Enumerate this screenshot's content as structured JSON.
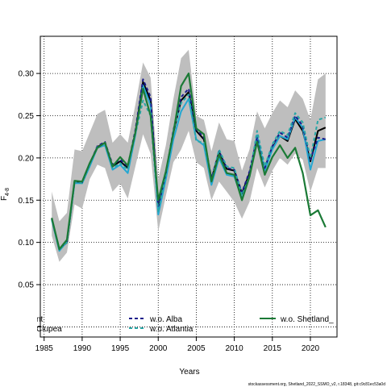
{
  "chart_data": {
    "type": "line",
    "xlabel": "Years",
    "ylabel_main": "F",
    "ylabel_sub": "4-8",
    "xlim": [
      1984.5,
      2023.5
    ],
    "ylim": [
      -0.012,
      0.344
    ],
    "xticks": [
      1985,
      1990,
      1995,
      2000,
      2005,
      2010,
      2015,
      2020
    ],
    "yticks": [
      0.0,
      0.05,
      0.1,
      0.15,
      0.2,
      0.25,
      0.3
    ],
    "ytick_labels": [
      "0.00",
      "0.05",
      "0.10",
      "0.15",
      "0.20",
      "0.25",
      "0.30"
    ],
    "grid": true,
    "x": [
      1986,
      1987,
      1988,
      1989,
      1990,
      1991,
      1992,
      1993,
      1994,
      1995,
      1996,
      1997,
      1998,
      1999,
      2000,
      2001,
      2002,
      2003,
      2004,
      2005,
      2006,
      2007,
      2008,
      2009,
      2010,
      2011,
      2012,
      2013,
      2014,
      2015,
      2016,
      2017,
      2018,
      2019,
      2020,
      2021,
      2022
    ],
    "band": {
      "upper": [
        0.16,
        0.125,
        0.135,
        0.21,
        0.208,
        0.23,
        0.252,
        0.257,
        0.218,
        0.228,
        0.218,
        0.263,
        0.313,
        0.295,
        0.175,
        0.215,
        0.27,
        0.318,
        0.328,
        0.25,
        0.245,
        0.208,
        0.242,
        0.222,
        0.22,
        0.185,
        0.21,
        0.255,
        0.235,
        0.253,
        0.268,
        0.26,
        0.28,
        0.27,
        0.245,
        0.293,
        0.3
      ],
      "lower": [
        0.108,
        0.077,
        0.088,
        0.145,
        0.14,
        0.175,
        0.192,
        0.188,
        0.16,
        0.17,
        0.152,
        0.19,
        0.228,
        0.205,
        0.113,
        0.155,
        0.195,
        0.21,
        0.232,
        0.195,
        0.188,
        0.15,
        0.172,
        0.16,
        0.148,
        0.128,
        0.148,
        0.188,
        0.165,
        0.185,
        0.2,
        0.192,
        0.205,
        0.198,
        0.16,
        0.188,
        0.188
      ]
    },
    "series": [
      {
        "name": "",
        "color": "#000000",
        "dash": "",
        "values": [
          0.128,
          0.092,
          0.1,
          0.172,
          0.171,
          0.193,
          0.213,
          0.218,
          0.19,
          0.196,
          0.188,
          0.23,
          0.29,
          0.268,
          0.14,
          0.18,
          0.23,
          0.268,
          0.278,
          0.232,
          0.222,
          0.175,
          0.207,
          0.187,
          0.185,
          0.158,
          0.182,
          0.22,
          0.185,
          0.212,
          0.226,
          0.22,
          0.246,
          0.232,
          0.196,
          0.232,
          0.236
        ]
      },
      {
        "name": "",
        "color": "#24a7d2",
        "dash": "",
        "values": [
          0.127,
          0.09,
          0.101,
          0.17,
          0.17,
          0.19,
          0.212,
          0.215,
          0.186,
          0.192,
          0.182,
          0.227,
          0.286,
          0.262,
          0.133,
          0.175,
          0.222,
          0.255,
          0.27,
          0.222,
          0.215,
          0.168,
          0.2,
          0.18,
          0.178,
          0.152,
          0.178,
          0.227,
          0.185,
          0.21,
          0.226,
          0.222,
          0.248,
          0.236,
          0.186,
          0.22,
          0.222
        ]
      },
      {
        "name": "w.o. Alba",
        "color": "#1b1b8a",
        "dash": "4,3",
        "values": [
          0.128,
          0.092,
          0.101,
          0.172,
          0.171,
          0.193,
          0.214,
          0.219,
          0.192,
          0.198,
          0.19,
          0.233,
          0.293,
          0.272,
          0.143,
          0.182,
          0.233,
          0.272,
          0.282,
          0.234,
          0.224,
          0.176,
          0.208,
          0.188,
          0.186,
          0.159,
          0.184,
          0.224,
          0.188,
          0.214,
          0.23,
          0.224,
          0.25,
          0.238,
          0.198,
          0.224,
          0.222
        ]
      },
      {
        "name": "w.o. Atlantia",
        "color": "#27a6a6",
        "dash": "4,3",
        "values": [
          0.127,
          0.091,
          0.1,
          0.171,
          0.17,
          0.192,
          0.213,
          0.217,
          0.188,
          0.194,
          0.186,
          0.228,
          0.268,
          0.25,
          0.136,
          0.18,
          0.232,
          0.265,
          0.275,
          0.22,
          0.218,
          0.172,
          0.21,
          0.19,
          0.188,
          0.156,
          0.178,
          0.232,
          0.19,
          0.216,
          0.232,
          0.227,
          0.253,
          0.242,
          0.2,
          0.245,
          0.248
        ]
      },
      {
        "name": "w.o. Shetland_",
        "color": "#1b7a36",
        "dash": "",
        "values": [
          0.129,
          0.092,
          0.103,
          0.173,
          0.172,
          0.194,
          0.212,
          0.218,
          0.19,
          0.201,
          0.191,
          0.23,
          0.282,
          0.25,
          0.15,
          0.184,
          0.23,
          0.285,
          0.3,
          0.235,
          0.228,
          0.172,
          0.204,
          0.182,
          0.18,
          0.15,
          0.178,
          0.219,
          0.18,
          0.201,
          0.215,
          0.2,
          0.212,
          0.182,
          0.132,
          0.138,
          0.118
        ]
      }
    ],
    "legend": {
      "placement": "bottom",
      "partial_labels": [
        "nt",
        "Clupea"
      ]
    }
  },
  "footer": "stockassessment.org, Shetland_2022_SSMO_v2, r.18348, git:c9c81ec53a0d"
}
